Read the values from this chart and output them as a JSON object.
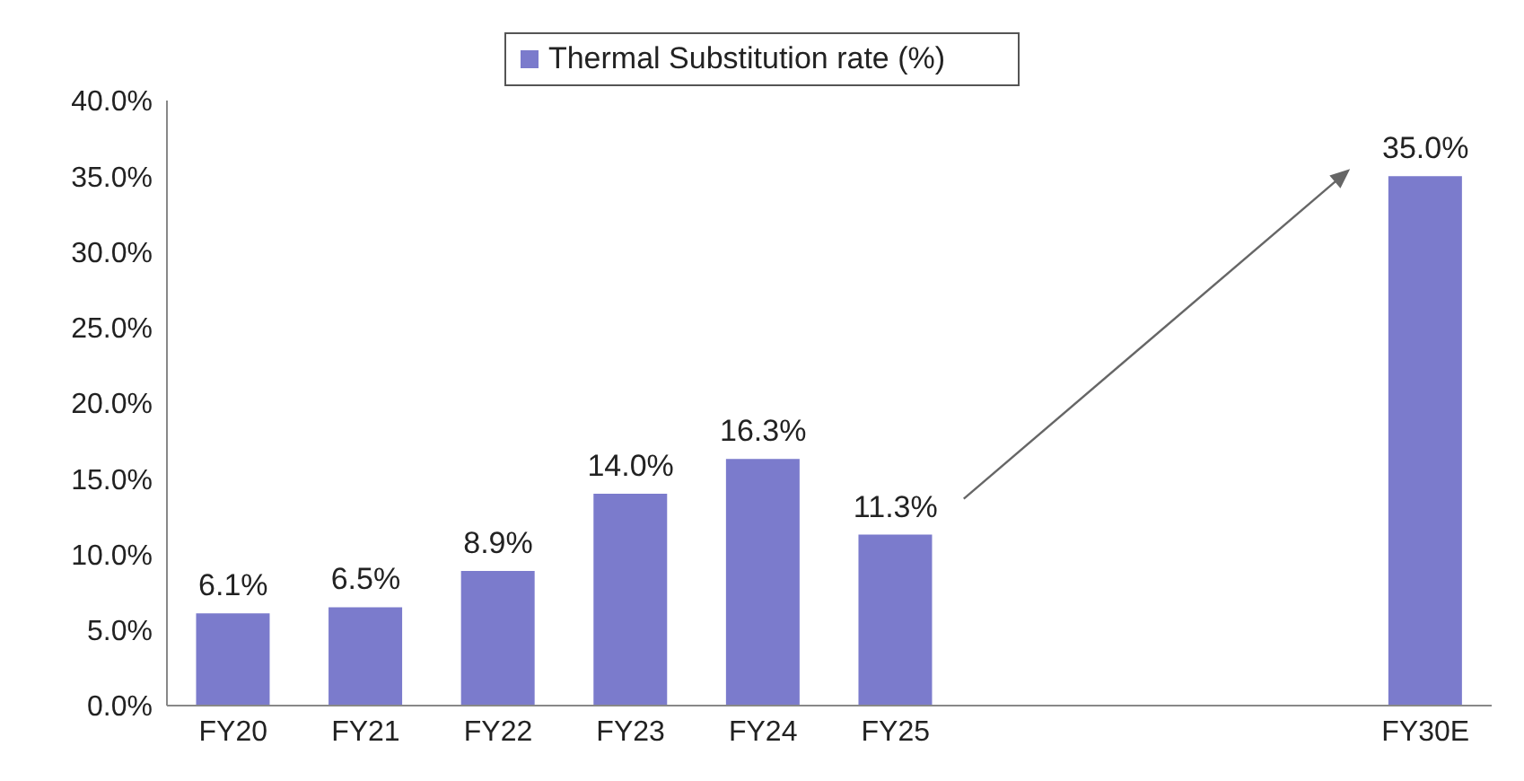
{
  "chart_data": {
    "type": "bar",
    "categories": [
      "FY20",
      "FY21",
      "FY22",
      "FY23",
      "FY24",
      "FY25",
      null,
      null,
      null,
      "FY30E"
    ],
    "series": [
      {
        "name": "Thermal Substitution rate (%)",
        "color": "#7b7bcc",
        "values": [
          6.1,
          6.5,
          8.9,
          14.0,
          16.3,
          11.3,
          null,
          null,
          null,
          35.0
        ],
        "value_labels": [
          "6.1%",
          "6.5%",
          "8.9%",
          "14.0%",
          "16.3%",
          "11.3%",
          null,
          null,
          null,
          "35.0%"
        ]
      }
    ],
    "ylim": [
      0,
      40
    ],
    "yticks": [
      {
        "value": 0,
        "label": "0.0%"
      },
      {
        "value": 5,
        "label": "5.0%"
      },
      {
        "value": 10,
        "label": "10.0%"
      },
      {
        "value": 15,
        "label": "15.0%"
      },
      {
        "value": 20,
        "label": "20.0%"
      },
      {
        "value": 25,
        "label": "25.0%"
      },
      {
        "value": 30,
        "label": "30.0%"
      },
      {
        "value": 35,
        "label": "35.0%"
      },
      {
        "value": 40,
        "label": "40.0%"
      }
    ],
    "grid": false,
    "legend": "top"
  }
}
